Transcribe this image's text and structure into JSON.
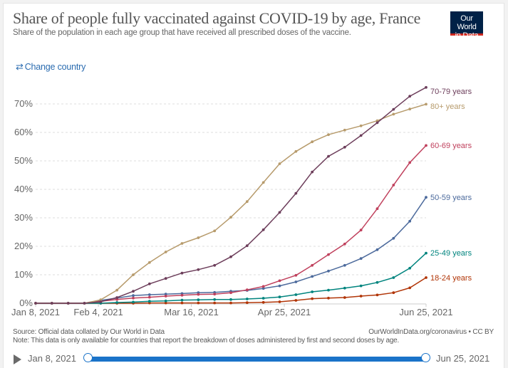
{
  "header": {
    "title": "Share of people fully vaccinated against COVID-19 by age, France",
    "subtitle": "Share of the population in each age group that have received all prescribed doses of the vaccine.",
    "logo_line1": "Our World",
    "logo_line2": "in Data"
  },
  "controls": {
    "change_country_icon": "swap-arrows-icon",
    "change_country_label": "Change country"
  },
  "chart_data": {
    "type": "line",
    "title": "Share of people fully vaccinated against COVID-19 by age, France",
    "xlabel": "",
    "ylabel": "",
    "x_start": "2021-01-08",
    "x_step_days": 7,
    "x": [
      "Jan 8",
      "Jan 15",
      "Jan 22",
      "Jan 29",
      "Feb 5",
      "Feb 12",
      "Feb 19",
      "Feb 26",
      "Mar 5",
      "Mar 12",
      "Mar 19",
      "Mar 26",
      "Apr 2",
      "Apr 9",
      "Apr 16",
      "Apr 23",
      "Apr 30",
      "May 7",
      "May 14",
      "May 21",
      "May 28",
      "Jun 4",
      "Jun 11",
      "Jun 18",
      "Jun 25"
    ],
    "x_ticks": [
      {
        "label": "Jan 8, 2021",
        "day": 0
      },
      {
        "label": "Feb 4, 2021",
        "day": 27
      },
      {
        "label": "Mar 16, 2021",
        "day": 67
      },
      {
        "label": "Apr 25, 2021",
        "day": 107
      },
      {
        "label": "Jun 25, 2021",
        "day": 168
      }
    ],
    "x_range_days": [
      0,
      168
    ],
    "y_ticks": [
      {
        "label": "0%",
        "value": 0
      },
      {
        "label": "10%",
        "value": 10
      },
      {
        "label": "20%",
        "value": 20
      },
      {
        "label": "30%",
        "value": 30
      },
      {
        "label": "40%",
        "value": 40
      },
      {
        "label": "50%",
        "value": 50
      },
      {
        "label": "60%",
        "value": 60
      },
      {
        "label": "70%",
        "value": 70
      }
    ],
    "ylim": [
      0,
      78
    ],
    "grid": true,
    "legend": "right-end-labels",
    "series": [
      {
        "name": "70-79 years",
        "color": "#6d3e5b",
        "values": [
          0,
          0,
          0,
          0,
          0.5,
          2,
          4.2,
          6.8,
          8.7,
          10.6,
          11.8,
          13.3,
          16.3,
          20.2,
          25.8,
          31.9,
          38.6,
          46.1,
          51.6,
          54.8,
          58.9,
          63.4,
          68.1,
          72.7,
          75.8
        ]
      },
      {
        "name": "80+ years",
        "color": "#b79b6c",
        "values": [
          0,
          0,
          0,
          0,
          1.2,
          4.6,
          10,
          14.3,
          18,
          21,
          23,
          25.4,
          30.2,
          35.7,
          42.4,
          49,
          53.3,
          56.7,
          59.2,
          60.8,
          62.3,
          64.1,
          66.4,
          68.2,
          69.9
        ]
      },
      {
        "name": "60-69 years",
        "color": "#c0415d",
        "values": [
          0,
          0,
          0,
          0,
          0.7,
          1.3,
          1.8,
          2.1,
          2.5,
          2.8,
          3.1,
          3.2,
          3.7,
          4.7,
          5.9,
          7.9,
          9.8,
          13.3,
          17.1,
          20.8,
          25.7,
          33.2,
          41.5,
          49.4,
          55.4
        ]
      },
      {
        "name": "50-59 years",
        "color": "#4c6a9c",
        "values": [
          0,
          0,
          0,
          0,
          1,
          1.8,
          2.7,
          3,
          3.2,
          3.4,
          3.7,
          3.8,
          4.2,
          4.5,
          5.2,
          6.1,
          7.5,
          9.4,
          11.3,
          13.3,
          15.7,
          18.8,
          22.8,
          28.8,
          37.2
        ]
      },
      {
        "name": "25-49 years",
        "color": "#00847e",
        "values": [
          0,
          0,
          0,
          0,
          0,
          0.25,
          0.4,
          0.7,
          0.8,
          1.1,
          1.2,
          1.3,
          1.3,
          1.5,
          1.75,
          2.2,
          3,
          4,
          4.6,
          5.3,
          6.1,
          7.3,
          9,
          12.3,
          17.6
        ]
      },
      {
        "name": "18-24 years",
        "color": "#b13507",
        "values": [
          0,
          0,
          0,
          0,
          0,
          0,
          0,
          0.1,
          0.1,
          0.1,
          0.1,
          0.1,
          0.1,
          0.2,
          0.3,
          0.5,
          1,
          1.6,
          1.8,
          2,
          2.5,
          2.9,
          3.7,
          5.4,
          9
        ]
      }
    ]
  },
  "footer": {
    "source": "Source: Official data collated by Our World in Data",
    "note": "Note: This data is only available for countries that report the breakdown of doses administered by first and second doses by age.",
    "credit": "OurWorldInData.org/coronavirus • CC BY"
  },
  "timeline": {
    "play_icon": "play-icon",
    "start_label": "Jan 8, 2021",
    "end_label": "Jun 25, 2021",
    "range_fraction": [
      0,
      1
    ]
  }
}
